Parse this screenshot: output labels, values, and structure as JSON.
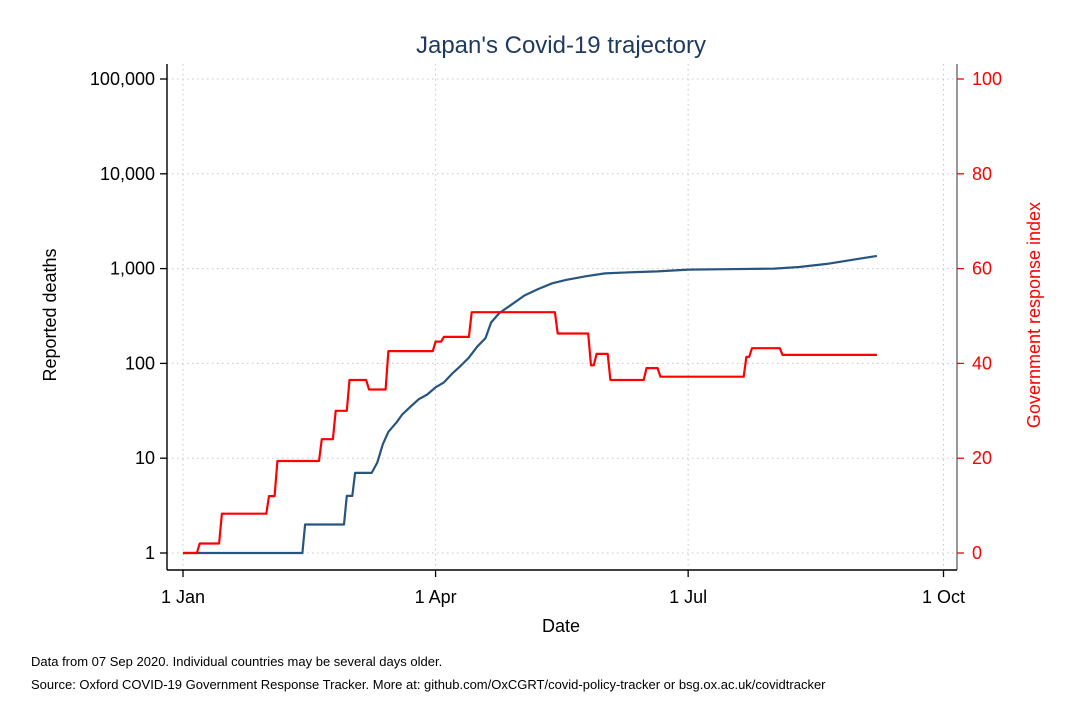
{
  "chart_data": {
    "type": "line",
    "title": "Japan's Covid-19 trajectory",
    "xlabel": "Date",
    "ylabel_left": "Reported deaths",
    "ylabel_right": "Government response index",
    "x_ticks": [
      {
        "date": "2020-01-01",
        "label": "1 Jan"
      },
      {
        "date": "2020-04-01",
        "label": "1 Apr"
      },
      {
        "date": "2020-07-01",
        "label": "1 Jul"
      },
      {
        "date": "2020-10-01",
        "label": "1 Oct"
      }
    ],
    "y_left": {
      "scale": "log",
      "range": [
        1,
        100000
      ],
      "ticks": [
        {
          "value": 1,
          "label": "1"
        },
        {
          "value": 10,
          "label": "10"
        },
        {
          "value": 100,
          "label": "100"
        },
        {
          "value": 1000,
          "label": "1,000"
        },
        {
          "value": 10000,
          "label": "10,000"
        },
        {
          "value": 100000,
          "label": "100,000"
        }
      ]
    },
    "y_right": {
      "scale": "linear",
      "range": [
        0,
        100
      ],
      "ticks": [
        {
          "value": 0,
          "label": "0"
        },
        {
          "value": 20,
          "label": "20"
        },
        {
          "value": 40,
          "label": "40"
        },
        {
          "value": 60,
          "label": "60"
        },
        {
          "value": 80,
          "label": "80"
        },
        {
          "value": 100,
          "label": "100"
        }
      ]
    },
    "grid": true,
    "series": [
      {
        "axis": "left",
        "color": "#27557f",
        "points": [
          [
            "2020-01-01",
            1
          ],
          [
            "2020-02-13",
            1
          ],
          [
            "2020-02-14",
            2
          ],
          [
            "2020-02-28",
            2
          ],
          [
            "2020-02-29",
            4
          ],
          [
            "2020-03-02",
            4
          ],
          [
            "2020-03-03",
            7
          ],
          [
            "2020-03-09",
            7
          ],
          [
            "2020-03-11",
            9
          ],
          [
            "2020-03-13",
            14
          ],
          [
            "2020-03-15",
            19
          ],
          [
            "2020-03-18",
            24
          ],
          [
            "2020-03-20",
            29
          ],
          [
            "2020-03-23",
            35
          ],
          [
            "2020-03-26",
            42
          ],
          [
            "2020-03-29",
            47
          ],
          [
            "2020-04-01",
            56
          ],
          [
            "2020-04-04",
            63
          ],
          [
            "2020-04-07",
            78
          ],
          [
            "2020-04-10",
            94
          ],
          [
            "2020-04-13",
            115
          ],
          [
            "2020-04-16",
            150
          ],
          [
            "2020-04-19",
            185
          ],
          [
            "2020-04-21",
            270
          ],
          [
            "2020-04-24",
            340
          ],
          [
            "2020-04-28",
            410
          ],
          [
            "2020-05-03",
            520
          ],
          [
            "2020-05-08",
            610
          ],
          [
            "2020-05-13",
            700
          ],
          [
            "2020-05-18",
            760
          ],
          [
            "2020-05-25",
            830
          ],
          [
            "2020-06-01",
            890
          ],
          [
            "2020-06-10",
            915
          ],
          [
            "2020-06-20",
            935
          ],
          [
            "2020-07-01",
            975
          ],
          [
            "2020-07-15",
            985
          ],
          [
            "2020-08-01",
            1000
          ],
          [
            "2020-08-10",
            1040
          ],
          [
            "2020-08-20",
            1120
          ],
          [
            "2020-08-30",
            1250
          ],
          [
            "2020-09-07",
            1360
          ]
        ]
      },
      {
        "axis": "right",
        "color": "#ff0000",
        "points": [
          [
            "2020-01-01",
            0
          ],
          [
            "2020-01-06",
            0
          ],
          [
            "2020-01-07",
            2
          ],
          [
            "2020-01-14",
            2
          ],
          [
            "2020-01-15",
            8.3
          ],
          [
            "2020-01-31",
            8.3
          ],
          [
            "2020-02-01",
            12
          ],
          [
            "2020-02-03",
            12
          ],
          [
            "2020-02-04",
            19.4
          ],
          [
            "2020-02-19",
            19.4
          ],
          [
            "2020-02-20",
            24
          ],
          [
            "2020-02-24",
            24
          ],
          [
            "2020-02-25",
            30
          ],
          [
            "2020-02-29",
            30
          ],
          [
            "2020-03-01",
            36.5
          ],
          [
            "2020-03-07",
            36.5
          ],
          [
            "2020-03-08",
            34.5
          ],
          [
            "2020-03-14",
            34.5
          ],
          [
            "2020-03-15",
            42.6
          ],
          [
            "2020-03-31",
            42.6
          ],
          [
            "2020-04-01",
            44.6
          ],
          [
            "2020-04-03",
            44.6
          ],
          [
            "2020-04-04",
            45.6
          ],
          [
            "2020-04-13",
            45.6
          ],
          [
            "2020-04-14",
            50.8
          ],
          [
            "2020-05-14",
            50.8
          ],
          [
            "2020-05-15",
            46.3
          ],
          [
            "2020-05-26",
            46.3
          ],
          [
            "2020-05-27",
            39.6
          ],
          [
            "2020-05-28",
            39.6
          ],
          [
            "2020-05-29",
            42
          ],
          [
            "2020-06-02",
            42
          ],
          [
            "2020-06-03",
            36.5
          ],
          [
            "2020-06-15",
            36.5
          ],
          [
            "2020-06-16",
            39
          ],
          [
            "2020-06-20",
            39
          ],
          [
            "2020-06-21",
            37.2
          ],
          [
            "2020-07-21",
            37.2
          ],
          [
            "2020-07-22",
            41.4
          ],
          [
            "2020-07-23",
            41.4
          ],
          [
            "2020-07-24",
            43.2
          ],
          [
            "2020-08-03",
            43.2
          ],
          [
            "2020-08-04",
            41.8
          ],
          [
            "2020-09-07",
            41.8
          ]
        ]
      }
    ]
  },
  "footnotes": {
    "line1": "Data from 07 Sep 2020. Individual countries may be several days older.",
    "line2": "Source: Oxford COVID-19 Government Response Tracker. More at: github.com/OxCGRT/covid-policy-tracker or bsg.ox.ac.uk/covidtracker"
  },
  "colors": {
    "deaths": "#27557f",
    "response": "#ff0000",
    "grid": "#c8c8c8",
    "axis": "#000000"
  }
}
